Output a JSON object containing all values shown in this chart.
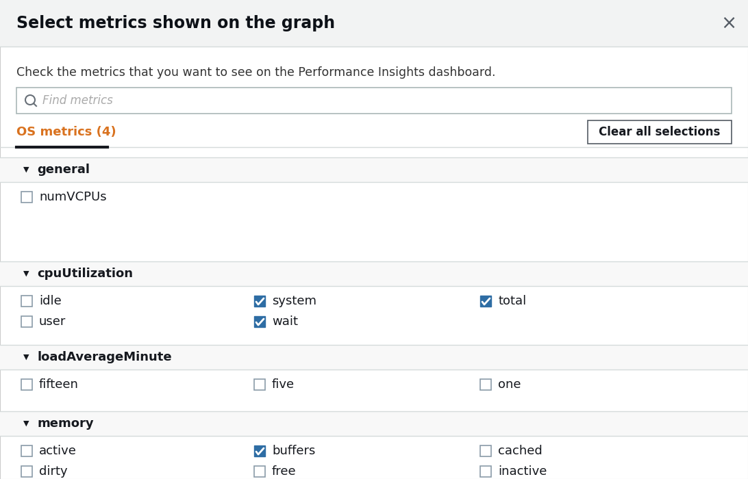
{
  "bg_color": "#f2f3f3",
  "white_panel": "#ffffff",
  "title": "Select metrics shown on the graph",
  "title_fontsize": 17,
  "title_color": "#0d1117",
  "subtitle": "Check the metrics that you want to see on the Performance Insights dashboard.",
  "subtitle_fontsize": 12.5,
  "subtitle_color": "#333333",
  "search_placeholder": "Find metrics",
  "tab_label": "OS metrics (4)",
  "tab_color": "#d9721f",
  "tab_underline_color": "#16191f",
  "button_label": "Clear all selections",
  "button_border_color": "#545b64",
  "button_text_color": "#16191f",
  "section_bg": "#f8f8f8",
  "section_names": [
    "general",
    "cpuUtilization",
    "loadAverageMinute",
    "memory"
  ],
  "section_header_color": "#16191f",
  "item_label_color": "#16191f",
  "divider_color": "#d5dbdb",
  "close_color": "#545b64",
  "search_border_color": "#aab7b8",
  "search_bg": "#ffffff",
  "search_icon_color": "#687078",
  "checkbox_checked_bg": "#2e6da4",
  "checkbox_unchecked_bg": "#ffffff",
  "checkbox_border_unchecked": "#8a9ba8",
  "section_rows": {
    "general": {
      "rows": [
        [
          {
            "label": "numVCPUs",
            "checked": false,
            "col": 0
          }
        ]
      ]
    },
    "cpuUtilization": {
      "rows": [
        [
          {
            "label": "idle",
            "checked": false,
            "col": 0
          },
          {
            "label": "system",
            "checked": true,
            "col": 1
          },
          {
            "label": "total",
            "checked": true,
            "col": 2
          }
        ],
        [
          {
            "label": "user",
            "checked": false,
            "col": 0
          },
          {
            "label": "wait",
            "checked": true,
            "col": 1
          }
        ]
      ]
    },
    "loadAverageMinute": {
      "rows": [
        [
          {
            "label": "fifteen",
            "checked": false,
            "col": 0
          },
          {
            "label": "five",
            "checked": false,
            "col": 1
          },
          {
            "label": "one",
            "checked": false,
            "col": 2
          }
        ]
      ]
    },
    "memory": {
      "rows": [
        [
          {
            "label": "active",
            "checked": false,
            "col": 0
          },
          {
            "label": "buffers",
            "checked": true,
            "col": 1
          },
          {
            "label": "cached",
            "checked": false,
            "col": 2
          }
        ],
        [
          {
            "label": "dirty",
            "checked": false,
            "col": 0
          },
          {
            "label": "free",
            "checked": false,
            "col": 1
          },
          {
            "label": "inactive",
            "checked": false,
            "col": 2
          }
        ]
      ]
    }
  }
}
